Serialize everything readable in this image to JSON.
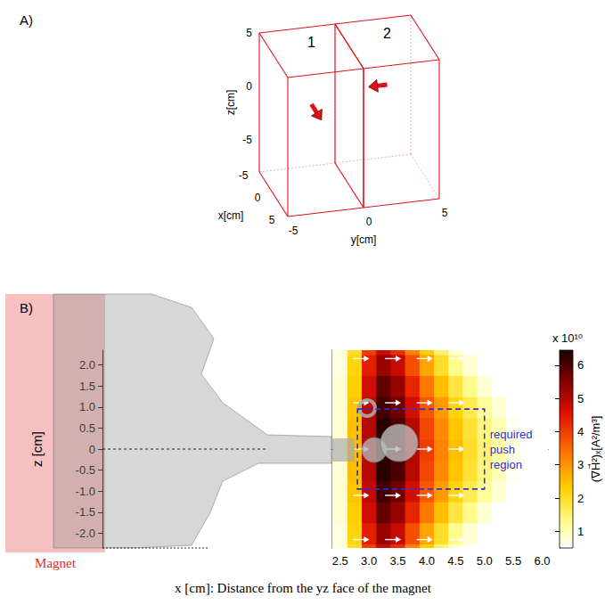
{
  "chart_data": [
    {
      "panel": "A)",
      "type": "3d_boxes",
      "xlabel": "x[cm]",
      "ylabel": "y[cm]",
      "zlabel": "z[cm]",
      "xlim": [
        -5,
        5
      ],
      "ylim": [
        -5,
        5
      ],
      "zlim": [
        -8,
        5
      ],
      "xticks": [
        -5,
        0,
        5
      ],
      "yticks": [
        -5,
        0,
        5
      ],
      "zticks": [
        -5,
        0,
        5
      ],
      "color": "#e0101a",
      "boxes": [
        {
          "label": "1",
          "y": [
            -5,
            0
          ]
        },
        {
          "label": "2",
          "y": [
            0,
            5
          ]
        }
      ],
      "arrows": [
        {
          "at": [
            0,
            -2.5,
            0
          ],
          "direction": [
            1,
            0,
            0
          ]
        },
        {
          "at": [
            0,
            2.5,
            1
          ],
          "direction": [
            0,
            -1,
            0
          ]
        }
      ]
    },
    {
      "panel": "B)",
      "type": "heatmap",
      "xlabel": "x [cm]: Distance from the yz face of the magnet",
      "ylabel": "z [cm]",
      "magnet_label": "Magnet",
      "xlim": [
        2.35,
        6.1
      ],
      "xticks": [
        2.5,
        {
          "value": 3,
          "label": "3.0"
        },
        3.5,
        {
          "value": 4,
          "label": "4.0"
        },
        4.5,
        {
          "value": 5,
          "label": "5.0"
        },
        5.5,
        {
          "value": 6,
          "label": "6.0"
        }
      ],
      "ylim": [
        -2.35,
        2.35
      ],
      "yticks": [
        {
          "value": -2,
          "label": "-2.0"
        },
        -1.5,
        {
          "value": -1,
          "label": "-1.0"
        },
        -0.5,
        0,
        0.5,
        {
          "value": 1,
          "label": "1.0"
        },
        1.5,
        {
          "value": 2,
          "label": "2.0"
        }
      ],
      "heatmap": {
        "x": [
          2.5,
          2.75,
          3.0,
          3.25,
          3.5,
          3.75,
          4.0,
          4.25,
          4.5,
          4.75,
          5.0,
          5.25,
          5.5,
          5.75,
          6.0
        ],
        "z": [
          -2.5,
          -2.0,
          -1.5,
          -1.0,
          -0.5,
          0,
          0.5,
          1.0,
          1.5,
          2.0,
          2.5
        ],
        "values": [
          [
            0.7,
            2.0,
            4.0,
            4.8,
            4.2,
            3.2,
            2.3,
            1.5,
            0.8,
            0.4,
            0.1,
            0,
            0,
            0,
            0
          ],
          [
            0.7,
            2.2,
            4.4,
            5.3,
            4.8,
            3.8,
            2.8,
            2.0,
            1.3,
            0.8,
            0.4,
            0.1,
            0,
            0,
            0
          ],
          [
            0.8,
            2.3,
            4.7,
            5.8,
            5.3,
            4.3,
            3.3,
            2.5,
            1.8,
            1.3,
            0.8,
            0.5,
            0.2,
            0,
            0
          ],
          [
            0.8,
            2.4,
            4.9,
            6.1,
            5.7,
            4.7,
            3.7,
            2.9,
            2.2,
            1.7,
            1.2,
            0.8,
            0.5,
            0.2,
            0
          ],
          [
            0.8,
            2.5,
            5.0,
            6.3,
            6.0,
            5.0,
            3.9,
            3.1,
            2.4,
            1.9,
            1.4,
            1.0,
            0.6,
            0.3,
            0.1
          ],
          [
            0.8,
            2.5,
            5.0,
            6.3,
            6.0,
            5.0,
            4.0,
            3.2,
            2.5,
            2.0,
            1.5,
            1.1,
            0.7,
            0.4,
            0.1
          ],
          [
            0.8,
            2.5,
            5.0,
            6.3,
            6.0,
            5.0,
            3.9,
            3.1,
            2.4,
            1.9,
            1.4,
            1.0,
            0.6,
            0.3,
            0.1
          ],
          [
            0.8,
            2.4,
            4.9,
            6.1,
            5.7,
            4.7,
            3.7,
            2.9,
            2.2,
            1.7,
            1.2,
            0.8,
            0.5,
            0.2,
            0
          ],
          [
            0.8,
            2.3,
            4.7,
            5.8,
            5.3,
            4.3,
            3.3,
            2.5,
            1.8,
            1.3,
            0.8,
            0.5,
            0.2,
            0,
            0
          ],
          [
            0.7,
            2.2,
            4.4,
            5.3,
            4.8,
            3.8,
            2.8,
            2.0,
            1.3,
            0.8,
            0.4,
            0.1,
            0,
            0,
            0
          ],
          [
            0.7,
            2.0,
            4.0,
            4.8,
            4.2,
            3.2,
            2.3,
            1.5,
            0.8,
            0.4,
            0.1,
            0,
            0,
            0,
            0
          ]
        ]
      },
      "colorbar": {
        "label": "(∇H⃗²)ₓ[A²/m³]",
        "multiplier": "x 10¹⁰",
        "lim": [
          0.5,
          6.45
        ],
        "ticks": [
          1,
          2,
          3,
          4,
          5,
          6
        ]
      },
      "arrows": [
        [
          2.85,
          2.15
        ],
        [
          3.4,
          2.15
        ],
        [
          3.95,
          2.15
        ],
        [
          4.5,
          2.15
        ],
        [
          2.85,
          1.1
        ],
        [
          3.4,
          1.1
        ],
        [
          3.95,
          1.1
        ],
        [
          4.5,
          1.1
        ],
        [
          2.85,
          0
        ],
        [
          3.4,
          0
        ],
        [
          3.95,
          0
        ],
        [
          4.5,
          0
        ],
        [
          2.85,
          -1.1
        ],
        [
          3.4,
          -1.1
        ],
        [
          3.95,
          -1.1
        ],
        [
          4.5,
          -1.1
        ],
        [
          2.85,
          -2.15
        ],
        [
          3.4,
          -2.15
        ],
        [
          3.95,
          -2.15
        ],
        [
          4.5,
          -2.15
        ]
      ],
      "push_region": {
        "label": "required push region",
        "x": [
          2.8,
          5.0
        ],
        "z": [
          -0.95,
          0.95
        ],
        "color": "#2f2fd0"
      }
    }
  ]
}
